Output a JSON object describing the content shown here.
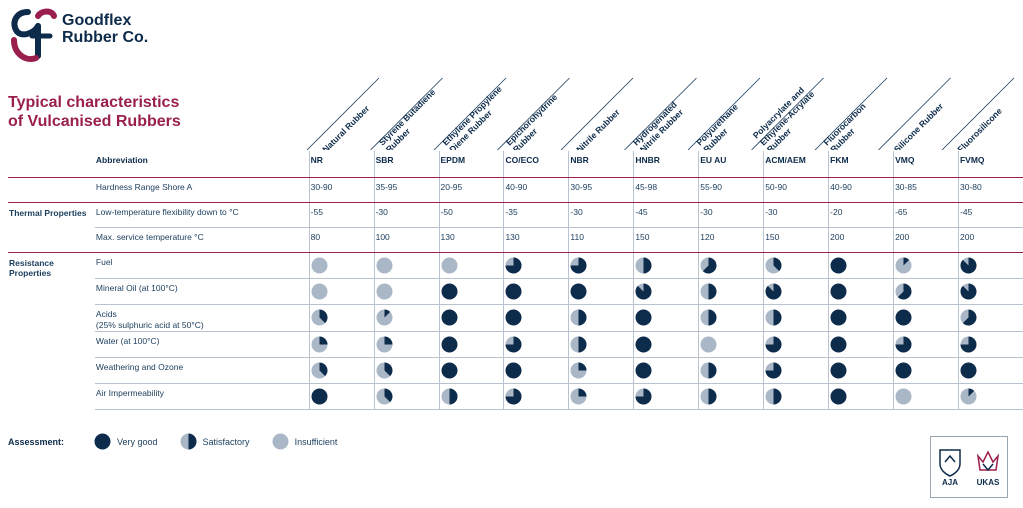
{
  "brand": {
    "line1": "Goodflex",
    "line2": "Rubber Co."
  },
  "title": {
    "line1": "Typical characteristics",
    "line2": "of Vulcanised Rubbers"
  },
  "columns": [
    {
      "name1": "Natural Rubber",
      "name2": ""
    },
    {
      "name1": "Styrene Butadiene",
      "name2": "Rubber"
    },
    {
      "name1": "Ethylene Propylene",
      "name2": "Diene Rubber"
    },
    {
      "name1": "Epichorohydrine",
      "name2": "Rubber"
    },
    {
      "name1": "Nitrile Rubber",
      "name2": ""
    },
    {
      "name1": "Hydrogenated",
      "name2": "Nitrile Rubber"
    },
    {
      "name1": "Polyurethane",
      "name2": "Rubber"
    },
    {
      "name1": "Polyacrylate and",
      "name2": "Ethylene-Acrylate",
      "name3": "Rubber"
    },
    {
      "name1": "Fluorocarbon",
      "name2": "Rubber"
    },
    {
      "name1": "Silicone Rubber",
      "name2": ""
    },
    {
      "name1": "Fluorosilicone",
      "name2": ""
    }
  ],
  "abbreviation": {
    "label": "Abbreviation",
    "values": [
      "NR",
      "SBR",
      "EPDM",
      "CO/ECO",
      "NBR",
      "HNBR",
      "EU AU",
      "ACM/AEM",
      "FKM",
      "VMQ",
      "FVMQ"
    ]
  },
  "hardness": {
    "label": "Hardness Range Shore A",
    "values": [
      "30-90",
      "35-95",
      "20-95",
      "40-90",
      "30-95",
      "45-98",
      "55-90",
      "50-90",
      "40-90",
      "30-85",
      "30-80"
    ]
  },
  "thermal": {
    "section": "Thermal Properties",
    "rows": [
      {
        "label": "Low-temperature flexibility down to °C",
        "values": [
          "-55",
          "-30",
          "-50",
          "-35",
          "-30",
          "-45",
          "-30",
          "-30",
          "-20",
          "-65",
          "-45"
        ]
      },
      {
        "label": "Max. service temperature °C",
        "values": [
          "80",
          "100",
          "130",
          "130",
          "110",
          "150",
          "120",
          "150",
          "200",
          "200",
          "200"
        ]
      }
    ]
  },
  "resistance": {
    "section": "Resistance Properties",
    "rows": [
      {
        "label": "Fuel",
        "label2": "",
        "ratings": [
          0,
          0,
          0,
          0.75,
          0.75,
          0.5,
          0.625,
          0.375,
          1,
          0.125,
          0.875
        ]
      },
      {
        "label": "Mineral Oil (at 100°C)",
        "label2": "",
        "ratings": [
          0,
          0,
          1,
          1,
          1,
          0.875,
          0.5,
          0.875,
          1,
          0.625,
          0.875
        ]
      },
      {
        "label": "Acids",
        "label2": "(25% sulphuric acid at 50°C)",
        "ratings": [
          0.375,
          0.125,
          1,
          1,
          0.5,
          1,
          0.5,
          0.5,
          1,
          1,
          0.625
        ]
      },
      {
        "label": "Water (at 100°C)",
        "label2": "",
        "ratings": [
          0.25,
          0.25,
          1,
          0.75,
          0.5,
          1,
          0,
          0.75,
          1,
          0.75,
          0.75
        ]
      },
      {
        "label": "Weathering and Ozone",
        "label2": "",
        "ratings": [
          0.375,
          0.375,
          1,
          1,
          0.25,
          1,
          0.5,
          0.75,
          1,
          1,
          1
        ]
      },
      {
        "label": "Air Impermeability",
        "label2": "",
        "ratings": [
          1,
          0.375,
          0.5,
          0.75,
          0.25,
          0.75,
          0.5,
          0.5,
          1,
          0,
          0.125
        ]
      }
    ]
  },
  "legend": {
    "label": "Assessment:",
    "items": [
      {
        "text": "Very good",
        "rating": 1
      },
      {
        "text": "Satisfactory",
        "rating": 0.5
      },
      {
        "text": "Insufficient",
        "rating": 0
      }
    ]
  },
  "certification": {
    "left": "AJA",
    "right": "UKAS"
  },
  "colors": {
    "dark": "#0d2b4a",
    "light": "#a9b7c6",
    "accent": "#9a1f4e"
  }
}
